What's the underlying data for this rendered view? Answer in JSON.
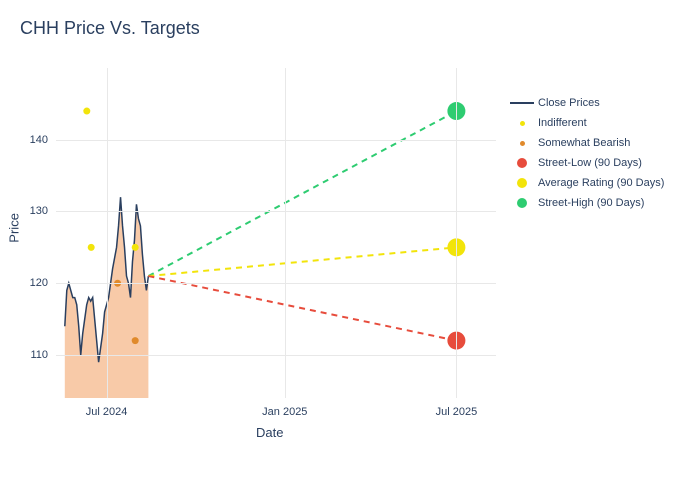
{
  "title": "CHH Price Vs. Targets",
  "axis": {
    "x_title": "Date",
    "y_title": "Price",
    "ylim": [
      104,
      150
    ],
    "yticks": [
      110,
      120,
      130,
      140
    ],
    "xticks": [
      {
        "label": "Jul 2024",
        "t": 0.115
      },
      {
        "label": "Jan 2025",
        "t": 0.52
      },
      {
        "label": "Jul 2025",
        "t": 0.91
      }
    ],
    "grid_color": "#e8e8e8",
    "background_color": "#ffffff",
    "label_fontsize": 11,
    "title_fontsize": 18,
    "axis_fontsize": 13
  },
  "series": {
    "close_prices": {
      "type": "line_area",
      "color": "#2a3f5f",
      "fill_color": "#f7c199",
      "fill_opacity": 0.85,
      "line_width": 1.5,
      "x0": 0.02,
      "x1": 0.21,
      "points": [
        114,
        119,
        120,
        119,
        118,
        118,
        117,
        114,
        110,
        113,
        115,
        117,
        118,
        117.5,
        118,
        115,
        112,
        109,
        111,
        113,
        116,
        117,
        118,
        120,
        122,
        123.5,
        125,
        128,
        132,
        128,
        125,
        121,
        120,
        118,
        123,
        126,
        131,
        129,
        128,
        124,
        121,
        119,
        121
      ]
    },
    "indifferent": {
      "type": "scatter",
      "color": "#f2e40a",
      "marker_size": 5,
      "points": [
        {
          "t": 0.07,
          "v": 144
        },
        {
          "t": 0.08,
          "v": 125
        },
        {
          "t": 0.18,
          "v": 125
        }
      ]
    },
    "somewhat_bearish": {
      "type": "scatter",
      "color": "#e08a2c",
      "marker_size": 5,
      "points": [
        {
          "t": 0.14,
          "v": 120
        },
        {
          "t": 0.18,
          "v": 112
        }
      ]
    },
    "street_low": {
      "type": "dashed_target",
      "color": "#e74c3c",
      "marker_size": 9,
      "line_width": 2,
      "dash": "6,5",
      "from": {
        "t": 0.21,
        "v": 121
      },
      "to": {
        "t": 0.91,
        "v": 112
      }
    },
    "average_rating": {
      "type": "dashed_target",
      "color": "#f2e40a",
      "marker_size": 9,
      "line_width": 2,
      "dash": "6,5",
      "from": {
        "t": 0.21,
        "v": 121
      },
      "to": {
        "t": 0.91,
        "v": 125
      }
    },
    "street_high": {
      "type": "dashed_target",
      "color": "#2ecc71",
      "marker_size": 9,
      "line_width": 2,
      "dash": "6,5",
      "from": {
        "t": 0.21,
        "v": 121
      },
      "to": {
        "t": 0.91,
        "v": 144
      }
    }
  },
  "legend": [
    {
      "key": "close_prices",
      "label": "Close Prices",
      "swatch": "line",
      "color": "#2a3f5f"
    },
    {
      "key": "indifferent",
      "label": "Indifferent",
      "swatch": "dot",
      "size": 5,
      "color": "#f2e40a"
    },
    {
      "key": "somewhat_bearish",
      "label": "Somewhat Bearish",
      "swatch": "dot",
      "size": 5,
      "color": "#e08a2c"
    },
    {
      "key": "street_low",
      "label": "Street-Low (90 Days)",
      "swatch": "dot",
      "size": 10,
      "color": "#e74c3c"
    },
    {
      "key": "average_rating",
      "label": "Average Rating (90 Days)",
      "swatch": "dot",
      "size": 10,
      "color": "#f2e40a"
    },
    {
      "key": "street_high",
      "label": "Street-High (90 Days)",
      "swatch": "dot",
      "size": 10,
      "color": "#2ecc71"
    }
  ]
}
